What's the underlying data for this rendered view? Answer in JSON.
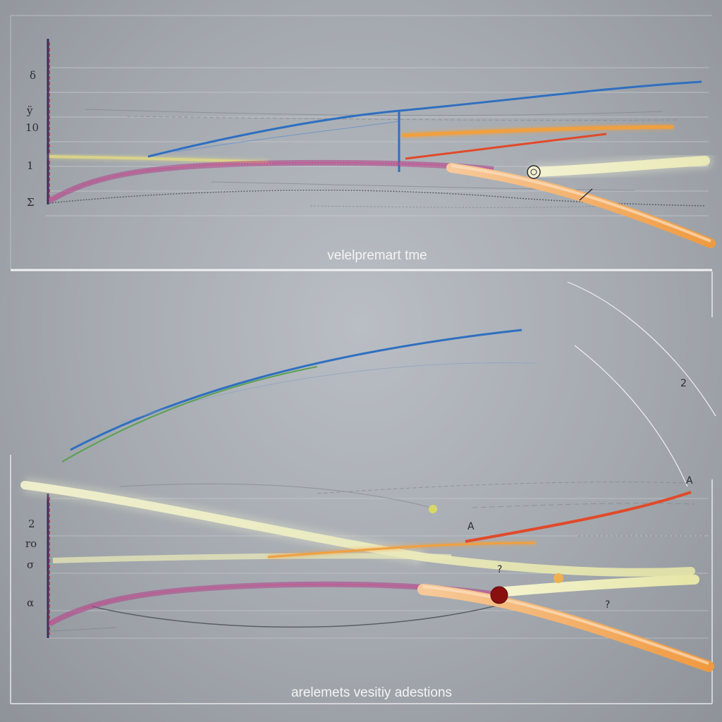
{
  "colors": {
    "background": "#a9aeb4",
    "frame": "#eef0f2",
    "axis": "#3a2c5c",
    "axis_accent": "#c0305a",
    "blue": "#2f6fc0",
    "orange": "#f0a040",
    "red": "#e04a2a",
    "yellow": "#e6e8b0",
    "magenta": "#b0408a",
    "green": "#5aa050",
    "gray": "#5a5f66",
    "marker_red": "#8a1010"
  },
  "chart_data": [
    {
      "type": "line",
      "title": "",
      "caption": "velelpremart tme",
      "xlabel": "",
      "ylabel": "",
      "y_tick_labels": [
        "δ",
        "ÿ",
        "10",
        "1",
        "Σ"
      ],
      "grid": true,
      "series": [
        {
          "color": "blue",
          "points": [
            [
              0,
              0.1
            ],
            [
              0.55,
              0.5
            ],
            [
              1.0,
              0.72
            ]
          ]
        },
        {
          "color": "orange",
          "points": [
            [
              0,
              0.48
            ],
            [
              0.3,
              0.46
            ],
            [
              0.6,
              0.42
            ],
            [
              1.0,
              0.44
            ]
          ]
        },
        {
          "color": "red",
          "points": [
            [
              0.55,
              0.28
            ],
            [
              0.8,
              0.36
            ],
            [
              0.9,
              0.4
            ]
          ]
        },
        {
          "color": "yellow",
          "points": [
            [
              0.7,
              0.26
            ],
            [
              0.85,
              0.28
            ],
            [
              1.0,
              0.3
            ]
          ]
        },
        {
          "color": "magenta",
          "points": [
            [
              0,
              0.02
            ],
            [
              0.15,
              0.22
            ],
            [
              0.5,
              0.24
            ],
            [
              0.75,
              0.1
            ],
            [
              1.0,
              -0.4
            ]
          ]
        },
        {
          "color": "gray",
          "points": [
            [
              0,
              0.0
            ],
            [
              0.4,
              0.02
            ],
            [
              0.7,
              0.05
            ],
            [
              1.0,
              0.06
            ]
          ]
        }
      ],
      "markers": [
        {
          "series": "blue",
          "x": 0.55,
          "kind": "vertical-drop"
        },
        {
          "series": "yellow",
          "x": 0.72,
          "kind": "open-circle"
        }
      ]
    },
    {
      "type": "line",
      "title": "",
      "caption": "arelemets vesitiy adestions",
      "xlabel": "",
      "ylabel": "",
      "y_tick_labels": [
        "2",
        "ro",
        "σ",
        "α"
      ],
      "annotations": [
        "A",
        "?",
        "?",
        "A",
        "2"
      ],
      "grid": true,
      "series": [
        {
          "color": "blue",
          "points": [
            [
              0.05,
              0.95
            ],
            [
              0.4,
              1.35
            ],
            [
              0.7,
              1.55
            ]
          ]
        },
        {
          "color": "green",
          "points": [
            [
              0.05,
              0.92
            ],
            [
              0.3,
              1.15
            ],
            [
              0.55,
              1.3
            ]
          ]
        },
        {
          "color": "yellow",
          "points": [
            [
              0.0,
              0.85
            ],
            [
              0.35,
              0.7
            ],
            [
              0.6,
              0.5
            ],
            [
              1.0,
              0.3
            ]
          ]
        },
        {
          "color": "red",
          "points": [
            [
              0.5,
              0.45
            ],
            [
              0.7,
              0.55
            ],
            [
              1.0,
              0.8
            ]
          ]
        },
        {
          "color": "orange",
          "points": [
            [
              0.2,
              0.4
            ],
            [
              0.6,
              0.5
            ],
            [
              1.0,
              0.55
            ]
          ]
        },
        {
          "color": "magenta",
          "points": [
            [
              0.0,
              0.0
            ],
            [
              0.3,
              0.25
            ],
            [
              0.66,
              0.27
            ],
            [
              0.8,
              0.15
            ],
            [
              1.0,
              -0.35
            ]
          ]
        },
        {
          "color": "gray",
          "points": [
            [
              0.0,
              -0.05
            ],
            [
              0.5,
              -0.05
            ],
            [
              1.0,
              0.1
            ]
          ]
        }
      ],
      "markers": [
        {
          "series": "magenta",
          "x": 0.66,
          "kind": "filled-dot"
        },
        {
          "series": "orange",
          "x": 0.75,
          "kind": "small-dot"
        }
      ]
    }
  ]
}
